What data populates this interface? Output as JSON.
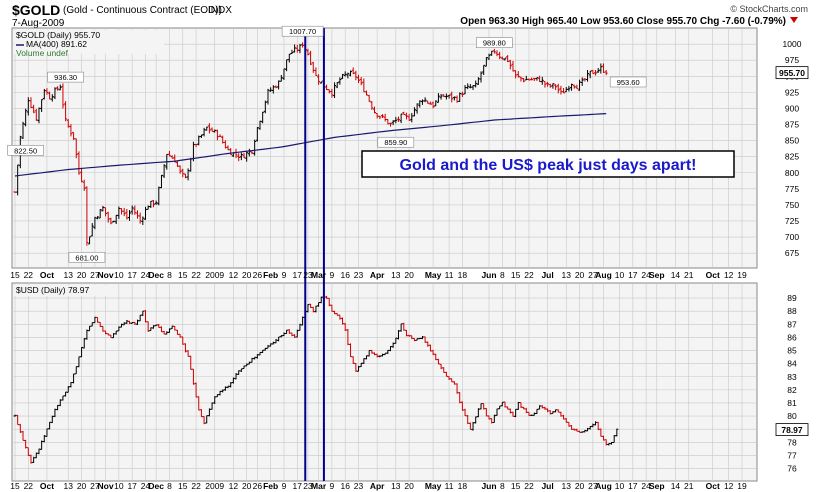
{
  "header": {
    "symbol": "$GOLD",
    "description": "(Gold - Continuous Contract (EOD))",
    "exchange": "INDX",
    "date": "7-Aug-2009",
    "watermark": "© StockCharts.com",
    "quote": "Open 963.30  High 965.40  Low 953.60  Close 955.70  Chg -7.60 (-0.79%)",
    "quote_arrow_color": "#cc0000"
  },
  "colors": {
    "background": "#ffffff",
    "panel_bg": "#f4f4f4",
    "grid": "#c8c8c8",
    "up_bar": "#000000",
    "down_bar": "#cc0000",
    "ma_line": "#1a1a6e",
    "vline": "#00008b",
    "callout_text": "#1a1acd",
    "last_price_bg": "#ffffff"
  },
  "annotation": {
    "text": "Gold and the US$ peak just days apart!"
  },
  "x_axis": {
    "labels": [
      {
        "text": "15",
        "i": 0
      },
      {
        "text": "22",
        "i": 5
      },
      {
        "text": "Oct",
        "i": 12
      },
      {
        "text": "13",
        "i": 20
      },
      {
        "text": "20",
        "i": 25
      },
      {
        "text": "27",
        "i": 30
      },
      {
        "text": "Nov",
        "i": 34
      },
      {
        "text": "10",
        "i": 39
      },
      {
        "text": "17",
        "i": 44
      },
      {
        "text": "24",
        "i": 49
      },
      {
        "text": "Dec",
        "i": 53
      },
      {
        "text": "8",
        "i": 58
      },
      {
        "text": "15",
        "i": 63
      },
      {
        "text": "22",
        "i": 68
      },
      {
        "text": "2009",
        "i": 75
      },
      {
        "text": "12",
        "i": 82
      },
      {
        "text": "20",
        "i": 87
      },
      {
        "text": "26",
        "i": 91
      },
      {
        "text": "Feb",
        "i": 96
      },
      {
        "text": "9",
        "i": 101
      },
      {
        "text": "17",
        "i": 106
      },
      {
        "text": "23",
        "i": 110
      },
      {
        "text": "Mar",
        "i": 114
      },
      {
        "text": "9",
        "i": 119
      },
      {
        "text": "16",
        "i": 124
      },
      {
        "text": "23",
        "i": 129
      },
      {
        "text": "Apr",
        "i": 136
      },
      {
        "text": "13",
        "i": 143
      },
      {
        "text": "20",
        "i": 148
      },
      {
        "text": "May",
        "i": 157
      },
      {
        "text": "11",
        "i": 163
      },
      {
        "text": "18",
        "i": 168
      },
      {
        "text": "Jun",
        "i": 178
      },
      {
        "text": "8",
        "i": 183
      },
      {
        "text": "15",
        "i": 188
      },
      {
        "text": "22",
        "i": 193
      },
      {
        "text": "Jul",
        "i": 200
      },
      {
        "text": "13",
        "i": 207
      },
      {
        "text": "20",
        "i": 212
      },
      {
        "text": "27",
        "i": 217
      },
      {
        "text": "Aug",
        "i": 221
      },
      {
        "text": "10",
        "i": 227
      },
      {
        "text": "17",
        "i": 232
      },
      {
        "text": "24",
        "i": 237
      },
      {
        "text": "Sep",
        "i": 241
      },
      {
        "text": "14",
        "i": 248
      },
      {
        "text": "21",
        "i": 253
      },
      {
        "text": "Oct",
        "i": 262
      },
      {
        "text": "12",
        "i": 268
      },
      {
        "text": "19",
        "i": 273
      }
    ],
    "vlines_at_bar": [
      109,
      116
    ]
  },
  "chart_data": [
    {
      "type": "ohlc",
      "title": "$GOLD (Daily) 955.70",
      "legend": [
        "$GOLD (Daily) 955.70",
        "MA(400) 891.62",
        "Volume undef"
      ],
      "ylim": [
        655,
        1022
      ],
      "y_ticks": [
        675,
        700,
        725,
        750,
        775,
        800,
        825,
        850,
        875,
        900,
        925,
        950,
        975,
        1000
      ],
      "last_price": 955.7,
      "last_price_label": "955.70",
      "keypoints": [
        [
          0,
          770
        ],
        [
          2,
          855
        ],
        [
          5,
          915
        ],
        [
          8,
          885
        ],
        [
          11,
          930
        ],
        [
          13,
          918
        ],
        [
          17,
          935
        ],
        [
          19,
          880
        ],
        [
          22,
          855
        ],
        [
          24,
          800
        ],
        [
          26,
          780
        ],
        [
          27,
          690
        ],
        [
          30,
          730
        ],
        [
          33,
          745
        ],
        [
          36,
          720
        ],
        [
          39,
          745
        ],
        [
          42,
          730
        ],
        [
          44,
          745
        ],
        [
          47,
          725
        ],
        [
          50,
          750
        ],
        [
          53,
          755
        ],
        [
          57,
          830
        ],
        [
          60,
          820
        ],
        [
          62,
          800
        ],
        [
          64,
          790
        ],
        [
          67,
          840
        ],
        [
          72,
          870
        ],
        [
          76,
          860
        ],
        [
          80,
          835
        ],
        [
          82,
          830
        ],
        [
          85,
          825
        ],
        [
          89,
          835
        ],
        [
          91,
          870
        ],
        [
          95,
          925
        ],
        [
          99,
          940
        ],
        [
          103,
          985
        ],
        [
          107,
          995
        ],
        [
          108,
          1001
        ],
        [
          110,
          985
        ],
        [
          113,
          950
        ],
        [
          116,
          935
        ],
        [
          119,
          925
        ],
        [
          122,
          945
        ],
        [
          125,
          955
        ],
        [
          128,
          950
        ],
        [
          131,
          930
        ],
        [
          135,
          895
        ],
        [
          138,
          885
        ],
        [
          141,
          875
        ],
        [
          145,
          887
        ],
        [
          148,
          885
        ],
        [
          151,
          905
        ],
        [
          153,
          915
        ],
        [
          157,
          905
        ],
        [
          160,
          920
        ],
        [
          163,
          918
        ],
        [
          166,
          915
        ],
        [
          169,
          930
        ],
        [
          173,
          935
        ],
        [
          177,
          975
        ],
        [
          180,
          990
        ],
        [
          182,
          982
        ],
        [
          185,
          975
        ],
        [
          188,
          950
        ],
        [
          191,
          945
        ],
        [
          194,
          945
        ],
        [
          197,
          945
        ],
        [
          200,
          935
        ],
        [
          203,
          935
        ],
        [
          205,
          923
        ],
        [
          207,
          930
        ],
        [
          209,
          940
        ],
        [
          211,
          935
        ],
        [
          213,
          940
        ],
        [
          216,
          955
        ],
        [
          218,
          958
        ],
        [
          220,
          962
        ],
        [
          222,
          958
        ]
      ],
      "ma_keypoints": [
        [
          0,
          795
        ],
        [
          20,
          805
        ],
        [
          40,
          812
        ],
        [
          60,
          818
        ],
        [
          80,
          830
        ],
        [
          100,
          840
        ],
        [
          120,
          855
        ],
        [
          140,
          865
        ],
        [
          160,
          873
        ],
        [
          180,
          882
        ],
        [
          200,
          887
        ],
        [
          222,
          892
        ]
      ],
      "ma_label": "MA(400) 891.62",
      "volume_label": "Volume undef",
      "callouts": [
        {
          "text": "936.30",
          "value": 936.3,
          "i": 19
        },
        {
          "text": "822.50",
          "value": 822.5,
          "i": 4
        },
        {
          "text": "681.00",
          "value": 681.0,
          "i": 27
        },
        {
          "text": "1007.70",
          "value": 1007.7,
          "i": 108
        },
        {
          "text": "859.90",
          "value": 859.9,
          "i": 143
        },
        {
          "text": "989.80",
          "value": 989.8,
          "i": 180
        },
        {
          "text": "953.60",
          "value": 953.6,
          "i": 222
        }
      ]
    },
    {
      "type": "ohlc",
      "title": "$USD (Daily) 78.97",
      "legend": [
        "$USD (Daily) 78.97"
      ],
      "ylim": [
        75.2,
        90.0
      ],
      "y_ticks": [
        76,
        77,
        78,
        79,
        80,
        81,
        82,
        83,
        84,
        85,
        86,
        87,
        88,
        89
      ],
      "last_price": 78.97,
      "last_price_label": "78.97",
      "keypoints": [
        [
          0,
          80.0
        ],
        [
          3,
          78.2
        ],
        [
          6,
          76.5
        ],
        [
          9,
          77.5
        ],
        [
          12,
          79.0
        ],
        [
          15,
          80.5
        ],
        [
          18,
          81.5
        ],
        [
          21,
          82.5
        ],
        [
          24,
          84.5
        ],
        [
          27,
          86.5
        ],
        [
          30,
          87.5
        ],
        [
          33,
          86.5
        ],
        [
          36,
          86.0
        ],
        [
          39,
          86.8
        ],
        [
          42,
          87.2
        ],
        [
          45,
          87.0
        ],
        [
          48,
          88.0
        ],
        [
          50,
          86.5
        ],
        [
          53,
          87.0
        ],
        [
          56,
          86.2
        ],
        [
          59,
          86.8
        ],
        [
          62,
          86.0
        ],
        [
          65,
          84.5
        ],
        [
          67,
          82.5
        ],
        [
          69,
          80.5
        ],
        [
          71,
          79.5
        ],
        [
          73,
          80.5
        ],
        [
          75,
          81.5
        ],
        [
          78,
          82.0
        ],
        [
          81,
          82.5
        ],
        [
          84,
          83.5
        ],
        [
          87,
          84.0
        ],
        [
          90,
          84.5
        ],
        [
          93,
          85.0
        ],
        [
          96,
          85.5
        ],
        [
          99,
          86.0
        ],
        [
          102,
          86.5
        ],
        [
          105,
          86.0
        ],
        [
          108,
          87.5
        ],
        [
          110,
          88.5
        ],
        [
          112,
          88.0
        ],
        [
          115,
          89.0
        ],
        [
          117,
          89.0
        ],
        [
          119,
          88.0
        ],
        [
          122,
          87.5
        ],
        [
          124,
          86.5
        ],
        [
          126,
          84.5
        ],
        [
          128,
          83.5
        ],
        [
          130,
          84.0
        ],
        [
          133,
          85.0
        ],
        [
          136,
          84.5
        ],
        [
          139,
          84.8
        ],
        [
          142,
          85.5
        ],
        [
          145,
          87.0
        ],
        [
          147,
          86.2
        ],
        [
          150,
          85.8
        ],
        [
          153,
          86.0
        ],
        [
          156,
          85.0
        ],
        [
          159,
          84.0
        ],
        [
          162,
          83.0
        ],
        [
          165,
          82.5
        ],
        [
          167,
          81.0
        ],
        [
          169,
          80.0
        ],
        [
          171,
          79.0
        ],
        [
          173,
          80.0
        ],
        [
          175,
          81.0
        ],
        [
          177,
          80.0
        ],
        [
          179,
          79.5
        ],
        [
          181,
          80.5
        ],
        [
          183,
          81.0
        ],
        [
          185,
          80.5
        ],
        [
          187,
          80.0
        ],
        [
          189,
          81.0
        ],
        [
          191,
          80.5
        ],
        [
          193,
          80.0
        ],
        [
          195,
          80.2
        ],
        [
          197,
          80.8
        ],
        [
          199,
          80.5
        ],
        [
          201,
          80.2
        ],
        [
          203,
          80.5
        ],
        [
          205,
          80.0
        ],
        [
          207,
          79.5
        ],
        [
          209,
          79.0
        ],
        [
          212,
          78.8
        ],
        [
          215,
          79.0
        ],
        [
          218,
          79.5
        ],
        [
          220,
          78.5
        ],
        [
          222,
          77.8
        ],
        [
          224,
          78.0
        ],
        [
          226,
          79.0
        ]
      ],
      "callouts": []
    }
  ]
}
